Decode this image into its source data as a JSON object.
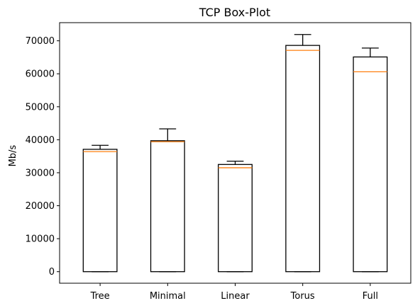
{
  "chart_data": {
    "type": "box",
    "title": "TCP Box-Plot",
    "xlabel": "",
    "ylabel": "Mb/s",
    "ylim": [
      -3500,
      75500
    ],
    "yticks": [
      0,
      10000,
      20000,
      30000,
      40000,
      50000,
      60000,
      70000
    ],
    "grid": false,
    "categories": [
      "Tree",
      "Minimal",
      "Linear",
      "Torus",
      "Full"
    ],
    "boxes": [
      {
        "whislo": 0,
        "q1": 0,
        "med": 36400,
        "q3": 37100,
        "whishi": 38300
      },
      {
        "whislo": 0,
        "q1": 0,
        "med": 39400,
        "q3": 39700,
        "whishi": 43300
      },
      {
        "whislo": 0,
        "q1": 0,
        "med": 31500,
        "q3": 32500,
        "whishi": 33500
      },
      {
        "whislo": 0,
        "q1": 0,
        "med": 67100,
        "q3": 68600,
        "whishi": 71900
      },
      {
        "whislo": 0,
        "q1": 0,
        "med": 60600,
        "q3": 65100,
        "whishi": 67800
      }
    ],
    "colors": {
      "box": "#000000",
      "median": "#ff7f0e"
    }
  }
}
